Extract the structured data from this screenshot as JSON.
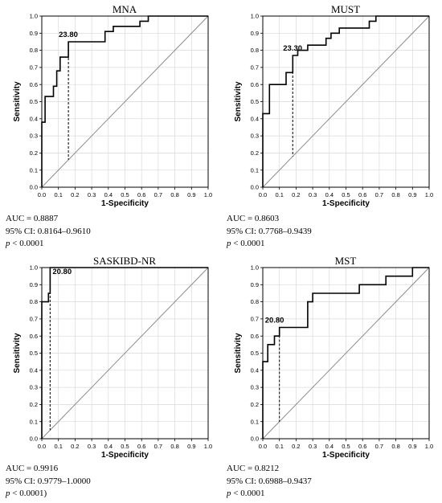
{
  "chart_data": [
    {
      "type": "line",
      "title": "MNA",
      "xlabel": "1-Specificity",
      "ylabel": "Sensitivity",
      "xlim": [
        0,
        1
      ],
      "ylim": [
        0,
        1
      ],
      "xticks": [
        "0.0",
        "0.1",
        "0.2",
        "0.3",
        "0.4",
        "0.5",
        "0.6",
        "0.7",
        "0.8",
        "0.9",
        "1.0"
      ],
      "yticks": [
        "0.0",
        "0.1",
        "0.2",
        "0.3",
        "0.4",
        "0.5",
        "0.6",
        "0.7",
        "0.8",
        "0.9",
        "1.0"
      ],
      "grid": true,
      "cutoff": {
        "label": "23.80",
        "x": 0.16,
        "y": 0.85
      },
      "series": [
        {
          "values": [
            [
              0,
              0
            ],
            [
              0,
              0.38
            ],
            [
              0.02,
              0.38
            ],
            [
              0.02,
              0.53
            ],
            [
              0.07,
              0.53
            ],
            [
              0.07,
              0.59
            ],
            [
              0.09,
              0.59
            ],
            [
              0.09,
              0.68
            ],
            [
              0.11,
              0.68
            ],
            [
              0.11,
              0.76
            ],
            [
              0.16,
              0.76
            ],
            [
              0.16,
              0.85
            ],
            [
              0.38,
              0.85
            ],
            [
              0.38,
              0.91
            ],
            [
              0.43,
              0.91
            ],
            [
              0.43,
              0.94
            ],
            [
              0.59,
              0.94
            ],
            [
              0.59,
              0.97
            ],
            [
              0.64,
              0.97
            ],
            [
              0.64,
              1.0
            ],
            [
              1.0,
              1.0
            ]
          ]
        }
      ],
      "stats": {
        "auc": "AUC = 0.8887",
        "ci": "95% CI: 0.8164–0.9610",
        "p_label": "p",
        "p_value": " < 0.0001"
      }
    },
    {
      "type": "line",
      "title": "MUST",
      "xlabel": "1-Specificity",
      "ylabel": "Sensitivity",
      "xlim": [
        0,
        1
      ],
      "ylim": [
        0,
        1
      ],
      "xticks": [
        "0.0",
        "0.1",
        "0.2",
        "0.3",
        "0.4",
        "0.5",
        "0.6",
        "0.7",
        "0.8",
        "0.9",
        "1.0"
      ],
      "yticks": [
        "0.0",
        "0.1",
        "0.2",
        "0.3",
        "0.4",
        "0.5",
        "0.6",
        "0.7",
        "0.8",
        "0.9",
        "1.0"
      ],
      "grid": true,
      "cutoff": {
        "label": "23.30",
        "x": 0.18,
        "y": 0.77
      },
      "series": [
        {
          "values": [
            [
              0,
              0
            ],
            [
              0,
              0.43
            ],
            [
              0.04,
              0.43
            ],
            [
              0.04,
              0.6
            ],
            [
              0.14,
              0.6
            ],
            [
              0.14,
              0.67
            ],
            [
              0.18,
              0.67
            ],
            [
              0.18,
              0.77
            ],
            [
              0.21,
              0.77
            ],
            [
              0.21,
              0.8
            ],
            [
              0.27,
              0.8
            ],
            [
              0.27,
              0.83
            ],
            [
              0.38,
              0.83
            ],
            [
              0.38,
              0.87
            ],
            [
              0.41,
              0.87
            ],
            [
              0.41,
              0.9
            ],
            [
              0.46,
              0.9
            ],
            [
              0.46,
              0.93
            ],
            [
              0.64,
              0.93
            ],
            [
              0.64,
              0.97
            ],
            [
              0.68,
              0.97
            ],
            [
              0.68,
              1.0
            ],
            [
              1.0,
              1.0
            ]
          ]
        }
      ],
      "stats": {
        "auc": "AUC = 0.8603",
        "ci": "95% CI: 0.7768–0.9439",
        "p_label": "p",
        "p_value": " < 0.0001"
      }
    },
    {
      "type": "line",
      "title": "SASKIBD-NR",
      "xlabel": "1-Specificity",
      "ylabel": "Sensitivity",
      "xlim": [
        0,
        1
      ],
      "ylim": [
        0,
        1
      ],
      "xticks": [
        "0.0",
        "0.1",
        "0.2",
        "0.3",
        "0.4",
        "0.5",
        "0.6",
        "0.7",
        "0.8",
        "0.9",
        "1.0"
      ],
      "yticks": [
        "0.0",
        "0.1",
        "0.2",
        "0.3",
        "0.4",
        "0.5",
        "0.6",
        "0.7",
        "0.8",
        "0.9",
        "1.0"
      ],
      "grid": true,
      "cutoff": {
        "label": "20.80",
        "x": 0.05,
        "y": 1.0
      },
      "series": [
        {
          "values": [
            [
              0,
              0
            ],
            [
              0,
              0.8
            ],
            [
              0.04,
              0.8
            ],
            [
              0.04,
              0.85
            ],
            [
              0.05,
              0.85
            ],
            [
              0.05,
              1.0
            ],
            [
              1.0,
              1.0
            ]
          ]
        }
      ],
      "stats": {
        "auc": "AUC = 0.9916",
        "ci": "95% CI: 0.9779–1.0000",
        "p_label": "p",
        "p_value": " < 0.0001)"
      }
    },
    {
      "type": "line",
      "title": "MST",
      "xlabel": "1-Specificity",
      "ylabel": "Sensitivity",
      "xlim": [
        0,
        1
      ],
      "ylim": [
        0,
        1
      ],
      "xticks": [
        "0.0",
        "0.1",
        "0.2",
        "0.3",
        "0.4",
        "0.5",
        "0.6",
        "0.7",
        "0.8",
        "0.9",
        "1.0"
      ],
      "yticks": [
        "0.0",
        "0.1",
        "0.2",
        "0.3",
        "0.4",
        "0.5",
        "0.6",
        "0.7",
        "0.8",
        "0.9",
        "1.0"
      ],
      "grid": true,
      "cutoff": {
        "label": "20.80",
        "x": 0.1,
        "y": 0.65
      },
      "series": [
        {
          "values": [
            [
              0,
              0
            ],
            [
              0,
              0.45
            ],
            [
              0.03,
              0.45
            ],
            [
              0.03,
              0.55
            ],
            [
              0.07,
              0.55
            ],
            [
              0.07,
              0.6
            ],
            [
              0.1,
              0.6
            ],
            [
              0.1,
              0.65
            ],
            [
              0.27,
              0.65
            ],
            [
              0.27,
              0.8
            ],
            [
              0.3,
              0.8
            ],
            [
              0.3,
              0.85
            ],
            [
              0.58,
              0.85
            ],
            [
              0.58,
              0.9
            ],
            [
              0.74,
              0.9
            ],
            [
              0.74,
              0.95
            ],
            [
              0.9,
              0.95
            ],
            [
              0.9,
              1.0
            ],
            [
              1.0,
              1.0
            ]
          ]
        }
      ],
      "stats": {
        "auc": "AUC = 0.8212",
        "ci": "95% CI: 0.6988–0.9437",
        "p_label": "p",
        "p_value": " < 0.0001"
      }
    }
  ]
}
